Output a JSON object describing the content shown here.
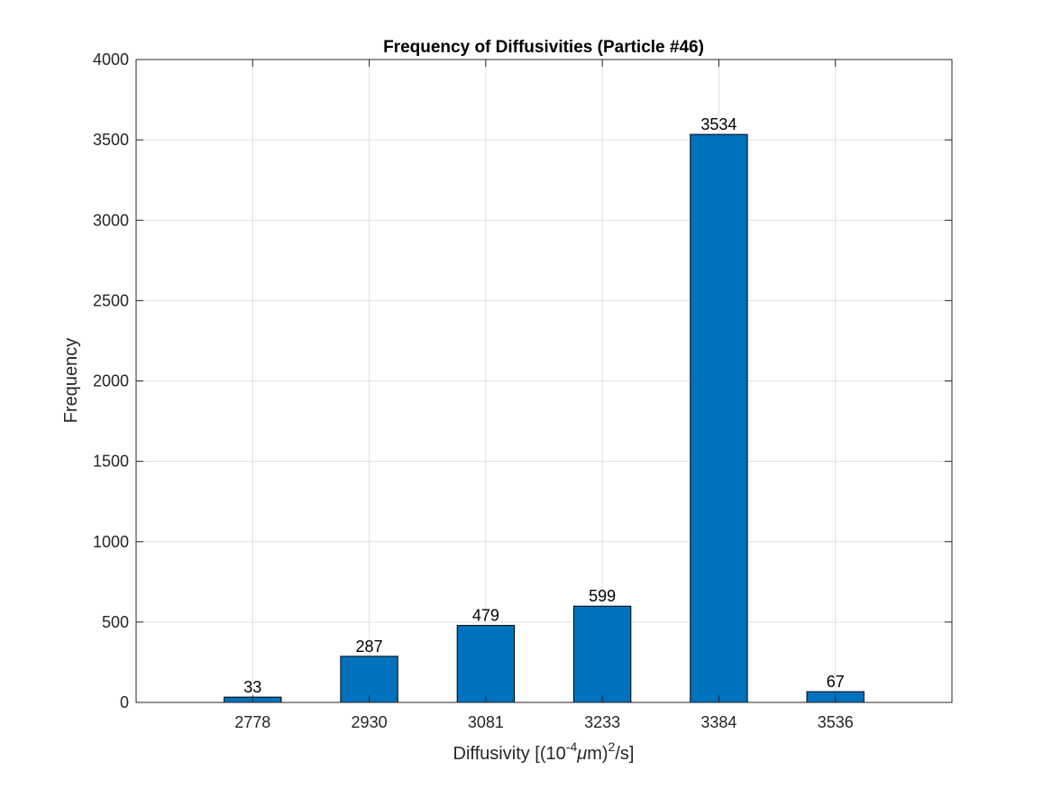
{
  "chart_data": {
    "type": "bar",
    "title": "Frequency of Diffusivities (Particle #46)",
    "xlabel": {
      "prefix": "Diffusivity [(10",
      "exp1": "-4",
      "mu": "μ",
      "mid": "m)",
      "exp2": "2",
      "suffix": "/s]"
    },
    "ylabel": "Frequency",
    "categories": [
      "2778",
      "2930",
      "3081",
      "3233",
      "3384",
      "3536"
    ],
    "values": [
      33,
      287,
      479,
      599,
      3534,
      67
    ],
    "data_labels": [
      "33",
      "287",
      "479",
      "599",
      "3534",
      "67"
    ],
    "ylim": [
      0,
      4000
    ],
    "yticks": [
      0,
      500,
      1000,
      1500,
      2000,
      2500,
      3000,
      3500,
      4000
    ],
    "ytick_labels": [
      "0",
      "500",
      "1000",
      "1500",
      "2000",
      "2500",
      "3000",
      "3500",
      "4000"
    ],
    "grid": true,
    "bar_color": "#0072BD",
    "bar_edge_color": "#000000",
    "grid_color": "#DFDFDF"
  }
}
